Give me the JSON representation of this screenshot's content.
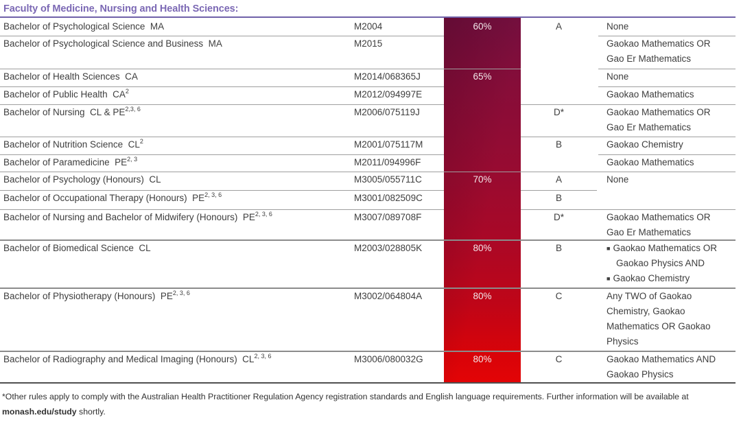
{
  "title": "Faculty of Medicine, Nursing and Health Sciences:",
  "colors": {
    "accent_purple": "#7b68b4",
    "rule_purple": "#6f60a8",
    "red_gradient_top": "#740f3e",
    "red_gradient_bottom": "#e30406",
    "pct_text": "#f3eaec",
    "body_text": "#3d3d3d",
    "border_gray": "#9e9e9e"
  },
  "percent_groups": [
    {
      "label": "60%"
    },
    {
      "label": "65%"
    },
    {
      "label": "70%"
    },
    {
      "label": "80%"
    },
    {
      "label": "80%"
    },
    {
      "label": "80%"
    }
  ],
  "rows": [
    {
      "course": "Bachelor of Psychological Science",
      "qual": "MA",
      "sup": "",
      "code": "M2004",
      "letter": "A",
      "prereq": [
        {
          "t": "None"
        }
      ]
    },
    {
      "course": "Bachelor of Psychological Science and Business",
      "qual": "MA",
      "sup": "",
      "code": "M2015",
      "letter": "",
      "prereq": [
        {
          "t": "Gaokao Mathematics OR"
        },
        {
          "t": "Gao Er Mathematics"
        }
      ]
    },
    {
      "course": "Bachelor of Health Sciences",
      "qual": "CA",
      "sup": "",
      "code": "M2014/068365J",
      "letter": "",
      "prereq": [
        {
          "t": "None"
        }
      ]
    },
    {
      "course": "Bachelor of Public Health",
      "qual": "CA",
      "sup": "2",
      "code": "M2012/094997E",
      "letter": "",
      "prereq": [
        {
          "t": "Gaokao Mathematics"
        }
      ]
    },
    {
      "course": "Bachelor of Nursing",
      "qual": "CL & PE",
      "sup": "2,3, 6",
      "code": "M2006/075119J",
      "letter": "D*",
      "prereq": [
        {
          "t": "Gaokao Mathematics OR"
        },
        {
          "t": "Gao Er Mathematics"
        }
      ]
    },
    {
      "course": "Bachelor of Nutrition Science",
      "qual": "CL",
      "sup": "2",
      "code": "M2001/075117M",
      "letter": "B",
      "prereq": [
        {
          "t": "Gaokao Chemistry"
        }
      ]
    },
    {
      "course": "Bachelor of Paramedicine",
      "qual": "PE",
      "sup": "2, 3",
      "code": "M2011/094996F",
      "letter": "",
      "prereq": [
        {
          "t": "Gaokao Mathematics"
        }
      ]
    },
    {
      "course": "Bachelor of Psychology (Honours)",
      "qual": "CL",
      "sup": "",
      "code": "M3005/055711C",
      "letter": "A",
      "prereq": [
        {
          "t": "None"
        }
      ]
    },
    {
      "course": "Bachelor of Occupational Therapy (Honours)",
      "qual": "PE",
      "sup": "2, 3, 6",
      "code": "M3001/082509C",
      "letter": "B",
      "prereq": []
    },
    {
      "course": "Bachelor of Nursing and Bachelor of Midwifery (Honours)",
      "qual": "PE",
      "sup": "2, 3, 6",
      "code": "M3007/089708F",
      "letter": "D*",
      "prereq": [
        {
          "t": "Gaokao Mathematics OR"
        },
        {
          "t": "Gao Er Mathematics"
        }
      ]
    },
    {
      "course": "Bachelor of Biomedical Science",
      "qual": "CL",
      "sup": "",
      "code": "M2003/028805K",
      "letter": "B",
      "prereq": [
        {
          "t": "Gaokao Mathematics OR",
          "b": 1
        },
        {
          "t": "Gaokao Physics AND",
          "i": 1
        },
        {
          "t": "Gaokao Chemistry",
          "b": 1
        }
      ]
    },
    {
      "course": "Bachelor of Physiotherapy (Honours)",
      "qual": "PE",
      "sup": "2, 3, 6",
      "code": "M3002/064804A",
      "letter": "C",
      "prereq": [
        {
          "t": "Any TWO of Gaokao"
        },
        {
          "t": "Chemistry, Gaokao"
        },
        {
          "t": "Mathematics OR Gaokao"
        },
        {
          "t": "Physics"
        }
      ]
    },
    {
      "course": "Bachelor of Radiography and Medical Imaging (Honours)",
      "qual": "CL",
      "sup": "2, 3, 6",
      "code": "M3006/080032G",
      "letter": "C",
      "prereq": [
        {
          "t": "Gaokao Mathematics AND"
        },
        {
          "t": "Gaokao Physics"
        }
      ]
    }
  ],
  "footnote": {
    "line1": "*Other rules apply to comply with the Australian Health Practitioner Regulation Agency registration standards and English language requirements. Further information will be available at",
    "line2_bold": "monash.edu/study",
    "line2_rest": " shortly."
  }
}
